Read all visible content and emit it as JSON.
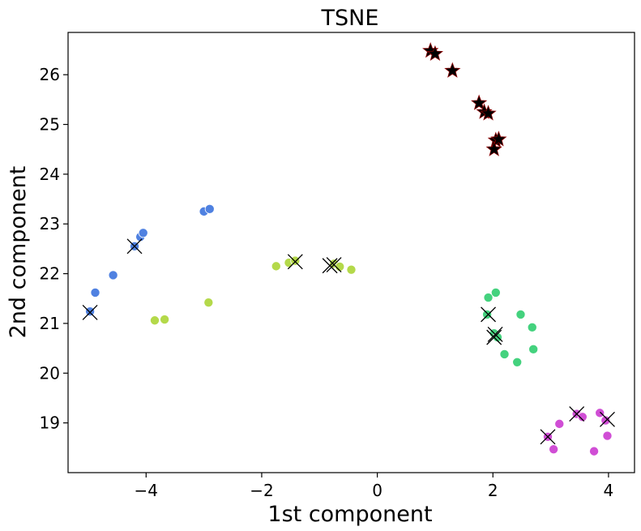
{
  "chart_data": {
    "type": "scatter",
    "title": "TSNE",
    "xlabel": "1st component",
    "ylabel": "2nd component",
    "xlim": [
      -5.35,
      4.45
    ],
    "ylim": [
      18.0,
      26.85
    ],
    "xticks": [
      -4,
      -2,
      0,
      2,
      4
    ],
    "xtick_labels": [
      "−4",
      "−2",
      "0",
      "2",
      "4"
    ],
    "yticks": [
      19,
      20,
      21,
      22,
      23,
      24,
      25,
      26
    ],
    "ytick_labels": [
      "19",
      "20",
      "21",
      "22",
      "23",
      "24",
      "25",
      "26"
    ],
    "grid": false,
    "series": [
      {
        "name": "blue cluster",
        "color": "#4f81e1",
        "marker": "circle",
        "points": [
          [
            -4.97,
            21.24
          ],
          [
            -4.88,
            21.62
          ],
          [
            -4.57,
            21.97
          ],
          [
            -4.2,
            22.55
          ],
          [
            -4.1,
            22.74
          ],
          [
            -4.05,
            22.82
          ],
          [
            -3.0,
            23.25
          ],
          [
            -2.9,
            23.3
          ]
        ]
      },
      {
        "name": "yellow-green cluster",
        "color": "#b4d94a",
        "marker": "circle",
        "points": [
          [
            -3.85,
            21.06
          ],
          [
            -3.68,
            21.08
          ],
          [
            -2.92,
            21.42
          ],
          [
            -1.75,
            22.15
          ],
          [
            -1.53,
            22.22
          ],
          [
            -1.42,
            22.26
          ],
          [
            -0.75,
            22.2
          ],
          [
            -0.65,
            22.14
          ],
          [
            -0.45,
            22.08
          ]
        ]
      },
      {
        "name": "green cluster",
        "color": "#44d27e",
        "marker": "circle",
        "points": [
          [
            1.9,
            21.18
          ],
          [
            1.92,
            21.52
          ],
          [
            2.05,
            21.62
          ],
          [
            2.02,
            20.8
          ],
          [
            2.08,
            20.72
          ],
          [
            2.2,
            20.38
          ],
          [
            2.42,
            20.22
          ],
          [
            2.48,
            21.18
          ],
          [
            2.68,
            20.92
          ],
          [
            2.7,
            20.48
          ]
        ]
      },
      {
        "name": "magenta cluster",
        "color": "#d04ed5",
        "marker": "circle",
        "points": [
          [
            2.95,
            18.72
          ],
          [
            3.05,
            18.47
          ],
          [
            3.15,
            18.98
          ],
          [
            3.45,
            19.18
          ],
          [
            3.55,
            19.12
          ],
          [
            3.75,
            18.43
          ],
          [
            3.85,
            19.2
          ],
          [
            3.95,
            19.05
          ],
          [
            3.98,
            18.74
          ]
        ]
      },
      {
        "name": "star cluster",
        "color": "#000000",
        "edge_color": "#8b0000",
        "marker": "star",
        "points": [
          [
            0.92,
            26.48
          ],
          [
            1.0,
            26.42
          ],
          [
            1.3,
            26.08
          ],
          [
            1.76,
            25.43
          ],
          [
            1.85,
            25.25
          ],
          [
            1.92,
            25.22
          ],
          [
            2.05,
            24.68
          ],
          [
            2.1,
            24.7
          ],
          [
            2.02,
            24.5
          ]
        ]
      },
      {
        "name": "centroid markers",
        "color": "#000000",
        "marker": "x",
        "points": [
          [
            -4.97,
            21.22
          ],
          [
            -4.2,
            22.55
          ],
          [
            -1.42,
            22.24
          ],
          [
            -0.75,
            22.18
          ],
          [
            -0.82,
            22.16
          ],
          [
            1.92,
            21.18
          ],
          [
            2.04,
            20.78
          ],
          [
            2.02,
            20.72
          ],
          [
            2.95,
            18.72
          ],
          [
            3.45,
            19.18
          ],
          [
            3.98,
            19.07
          ]
        ]
      }
    ]
  }
}
